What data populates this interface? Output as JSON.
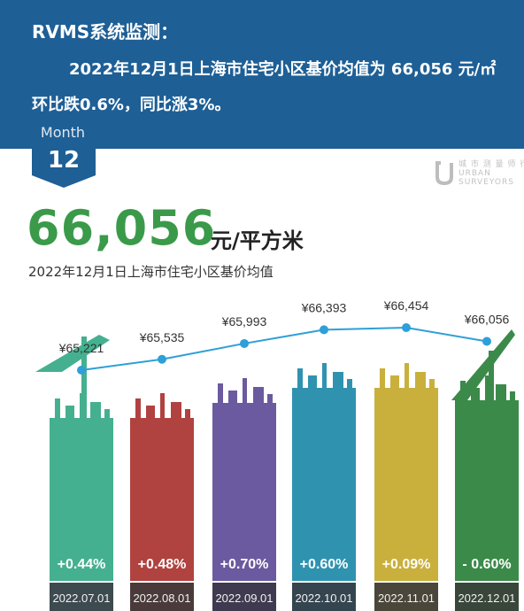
{
  "banner": {
    "line1": "RVMS系统监测：",
    "line2": "2022年12月1日上海市住宅小区基价均值为 66,056 元/㎡",
    "line3": "环比跌0.6%，同比涨3%。"
  },
  "month": {
    "label": "Month",
    "number": "12"
  },
  "logo": {
    "mark": "U",
    "text_lines": [
      "城 市 测 量 师 行",
      "URBAN",
      "SURVEYORS"
    ]
  },
  "headline": {
    "value": "66,056",
    "unit": "元/平方米"
  },
  "subtitle": "2022年12月1日上海市住宅小区基价均值",
  "colors": {
    "banner": "#1e5f96",
    "line": "#2e9fd8",
    "headline": "#3a9a4a",
    "bars": [
      "#45b08f",
      "#b0423f",
      "#6b5a9f",
      "#2f93b0",
      "#c9b03c",
      "#3b8a4a"
    ],
    "date_band": [
      "#3d4a4f",
      "#4a3a3a",
      "#3f3a4f",
      "#34454f",
      "#4a463a",
      "#39463a"
    ]
  },
  "chart_data": {
    "type": "bar",
    "categories": [
      "2022.07.01",
      "2022.08.01",
      "2022.09.01",
      "2022.10.01",
      "2022.11.01",
      "2022.12.01"
    ],
    "values": [
      65221,
      65535,
      65993,
      66393,
      66454,
      66056
    ],
    "value_labels": [
      "¥65,221",
      "¥65,535",
      "¥65,993",
      "¥66,393",
      "¥66,454",
      "¥66,056"
    ],
    "change_labels": [
      "+0.44%",
      "+0.48%",
      "+0.70%",
      "+0.60%",
      "+0.09%",
      "- 0.60%"
    ],
    "line_overlay": true,
    "grid": false,
    "legend": "none"
  }
}
